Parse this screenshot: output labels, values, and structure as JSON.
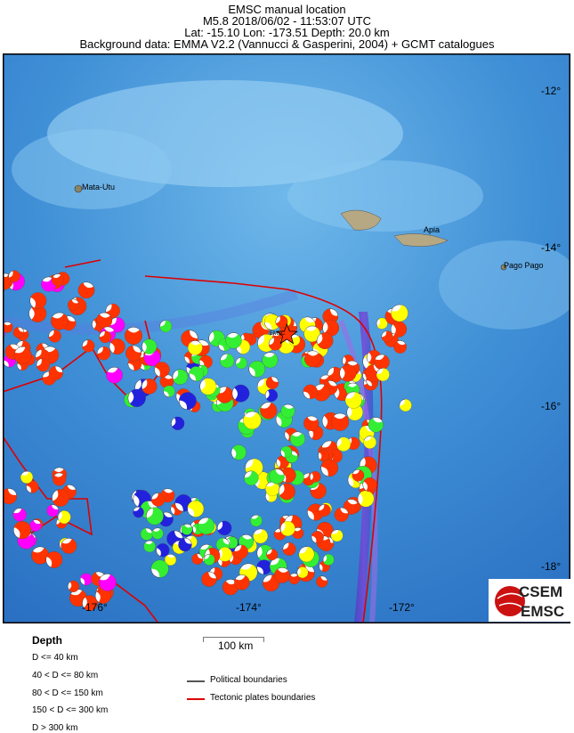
{
  "header": {
    "title": "EMSC manual location",
    "line2": "M5.8  2018/06/02 - 11:53:07 UTC",
    "line3": "Lat: -15.10    Lon: -173.51     Depth:  20.0 km",
    "line4": "Background data: EMMA V2.2 (Vannucci & Gasperini, 2004) + GCMT catalogues"
  },
  "map": {
    "epicenter": {
      "lat": -15.1,
      "lon": -173.51,
      "label": "EMSC",
      "icon": "star-icon",
      "color": "#ff3300"
    },
    "lat_labels": [
      "-12°",
      "-14°",
      "-16°",
      "-18°"
    ],
    "lon_labels": [
      "-176°",
      "-174°",
      "-172°"
    ],
    "places": [
      "Mata-Utu",
      "Apia",
      "Pago Pago"
    ],
    "logo": "CSEM EMSC"
  },
  "legend": {
    "depth_title": "Depth",
    "depth_classes": [
      {
        "label": "D <= 40 km",
        "color": "#ff3300"
      },
      {
        "label": "40 < D <= 80 km",
        "color": "#ffff00"
      },
      {
        "label": "80 < D <= 150 km",
        "color": "#33ee33"
      },
      {
        "label": "150 < D <= 300 km",
        "color": "#2222dd"
      },
      {
        "label": "D > 300 km",
        "color": "#ff00ff"
      }
    ],
    "scale": "100 km",
    "political": {
      "label": "Political boundaries",
      "color": "#555555"
    },
    "tectonic": {
      "label": "Tectonic plates boundaries",
      "color": "#dd0000"
    }
  }
}
